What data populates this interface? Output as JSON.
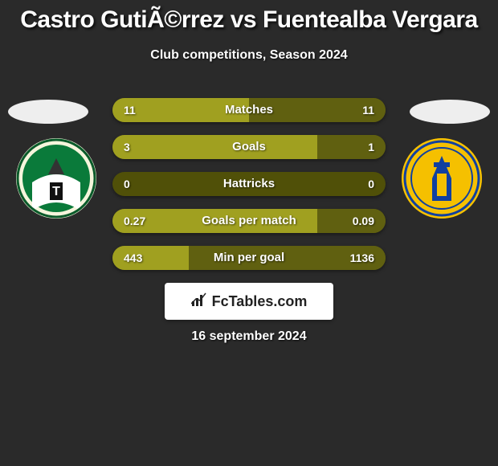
{
  "title": "Castro GutiÃ©rrez vs Fuentealba Vergara",
  "subtitle": "Club competitions, Season 2024",
  "date": "16 september 2024",
  "logo_text": "FcTables.com",
  "colors": {
    "background": "#2a2a2a",
    "bar_left": "#a0a020",
    "bar_right": "#606010",
    "row_bg": "#505008",
    "badge_left_bg": "#f5f5dc",
    "badge_right_bg": "#f5c000",
    "avatar_bg": "#eeeeee",
    "text": "#ffffff"
  },
  "stats": [
    {
      "label": "Matches",
      "left_val": "11",
      "right_val": "11",
      "left_pct": 50,
      "right_pct": 50
    },
    {
      "label": "Goals",
      "left_val": "3",
      "right_val": "1",
      "left_pct": 75,
      "right_pct": 25
    },
    {
      "label": "Hattricks",
      "left_val": "0",
      "right_val": "0",
      "left_pct": 0,
      "right_pct": 0
    },
    {
      "label": "Goals per match",
      "left_val": "0.27",
      "right_val": "0.09",
      "left_pct": 75,
      "right_pct": 25
    },
    {
      "label": "Min per goal",
      "left_val": "443",
      "right_val": "1136",
      "left_pct": 28,
      "right_pct": 72
    }
  ]
}
